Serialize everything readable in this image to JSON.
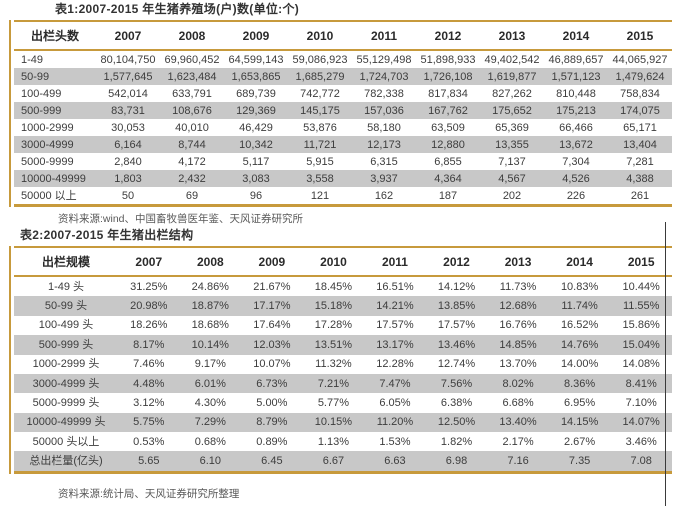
{
  "colors": {
    "accent": "#C79A3C",
    "rowalt": "#C8C8C8",
    "headertext": "#2b2b2b",
    "bodytext": "#3d3d3d",
    "sourcetext": "#595959"
  },
  "table1": {
    "title": "表1:2007-2015 年生猪养殖场(户)数(单位:个)",
    "columns": [
      "出栏头数",
      "2007",
      "2008",
      "2009",
      "2010",
      "2011",
      "2012",
      "2013",
      "2014",
      "2015"
    ],
    "rows": [
      [
        "1-49",
        "80,104,750",
        "69,960,452",
        "64,599,143",
        "59,086,923",
        "55,129,498",
        "51,898,933",
        "49,402,542",
        "46,889,657",
        "44,065,927"
      ],
      [
        "50-99",
        "1,577,645",
        "1,623,484",
        "1,653,865",
        "1,685,279",
        "1,724,703",
        "1,726,108",
        "1,619,877",
        "1,571,123",
        "1,479,624"
      ],
      [
        "100-499",
        "542,014",
        "633,791",
        "689,739",
        "742,772",
        "782,338",
        "817,834",
        "827,262",
        "810,448",
        "758,834"
      ],
      [
        "500-999",
        "83,731",
        "108,676",
        "129,369",
        "145,175",
        "157,036",
        "167,762",
        "175,652",
        "175,213",
        "174,075"
      ],
      [
        "1000-2999",
        "30,053",
        "40,010",
        "46,429",
        "53,876",
        "58,180",
        "63,509",
        "65,369",
        "66,466",
        "65,171"
      ],
      [
        "3000-4999",
        "6,164",
        "8,744",
        "10,342",
        "11,721",
        "12,173",
        "12,880",
        "13,355",
        "13,672",
        "13,404"
      ],
      [
        "5000-9999",
        "2,840",
        "4,172",
        "5,117",
        "5,915",
        "6,315",
        "6,855",
        "7,137",
        "7,304",
        "7,281"
      ],
      [
        "10000-49999",
        "1,803",
        "2,432",
        "3,083",
        "3,558",
        "3,937",
        "4,364",
        "4,567",
        "4,526",
        "4,388"
      ],
      [
        "50000 以上",
        "50",
        "69",
        "96",
        "121",
        "162",
        "187",
        "202",
        "226",
        "261"
      ]
    ],
    "source": "资料来源:wind、中国畜牧兽医年鉴、天风证券研究所"
  },
  "table2": {
    "title": "表2:2007-2015 年生猪出栏结构",
    "columns": [
      "出栏规模",
      "2007",
      "2008",
      "2009",
      "2010",
      "2011",
      "2012",
      "2013",
      "2014",
      "2015"
    ],
    "rows": [
      [
        "1-49 头",
        "31.25%",
        "24.86%",
        "21.67%",
        "18.45%",
        "16.51%",
        "14.12%",
        "11.73%",
        "10.83%",
        "10.44%"
      ],
      [
        "50-99 头",
        "20.98%",
        "18.87%",
        "17.17%",
        "15.18%",
        "14.21%",
        "13.85%",
        "12.68%",
        "11.74%",
        "11.55%"
      ],
      [
        "100-499 头",
        "18.26%",
        "18.68%",
        "17.64%",
        "17.28%",
        "17.57%",
        "17.57%",
        "16.76%",
        "16.52%",
        "15.86%"
      ],
      [
        "500-999 头",
        "8.17%",
        "10.14%",
        "12.03%",
        "13.51%",
        "13.17%",
        "13.46%",
        "14.85%",
        "14.76%",
        "15.04%"
      ],
      [
        "1000-2999 头",
        "7.46%",
        "9.17%",
        "10.07%",
        "11.32%",
        "12.28%",
        "12.74%",
        "13.70%",
        "14.00%",
        "14.08%"
      ],
      [
        "3000-4999 头",
        "4.48%",
        "6.01%",
        "6.73%",
        "7.21%",
        "7.47%",
        "7.56%",
        "8.02%",
        "8.36%",
        "8.41%"
      ],
      [
        "5000-9999 头",
        "3.12%",
        "4.30%",
        "5.00%",
        "5.77%",
        "6.05%",
        "6.38%",
        "6.68%",
        "6.95%",
        "7.10%"
      ],
      [
        "10000-49999 头",
        "5.75%",
        "7.29%",
        "8.79%",
        "10.15%",
        "11.20%",
        "12.50%",
        "13.40%",
        "14.15%",
        "14.07%"
      ],
      [
        "50000 头以上",
        "0.53%",
        "0.68%",
        "0.89%",
        "1.13%",
        "1.53%",
        "1.82%",
        "2.17%",
        "2.67%",
        "3.46%"
      ],
      [
        "总出栏量(亿头)",
        "5.65",
        "6.10",
        "6.45",
        "6.67",
        "6.63",
        "6.98",
        "7.16",
        "7.35",
        "7.08"
      ]
    ],
    "source": "资料来源:统计局、天风证券研究所整理"
  }
}
